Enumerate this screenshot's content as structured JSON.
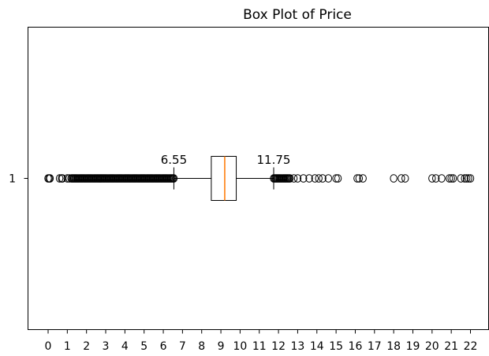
{
  "chart_data": {
    "type": "boxplot",
    "title": "Box Plot of Price",
    "orientation": "horizontal",
    "xlim": [
      -0.5,
      22.5
    ],
    "xticks": [
      0,
      1,
      2,
      3,
      4,
      5,
      6,
      7,
      8,
      9,
      10,
      11,
      12,
      13,
      14,
      15,
      16,
      17,
      18,
      19,
      20,
      21,
      22
    ],
    "yticks": [
      "1"
    ],
    "series": [
      {
        "category": "1",
        "whisker_low": 6.55,
        "q1": 8.5,
        "median": 9.2,
        "q3": 9.8,
        "whisker_high": 11.75,
        "outliers_low_dense_range": [
          1.2,
          6.55
        ],
        "outliers_low_sparse": [
          0.0,
          0.05,
          0.1,
          0.6,
          0.7,
          0.75,
          1.0,
          1.1
        ],
        "outliers_high_dense_range": [
          11.75,
          12.6
        ],
        "outliers_high_sparse": [
          12.8,
          13.0,
          13.3,
          13.6,
          13.9,
          14.1,
          14.3,
          14.6,
          15.0,
          15.1,
          16.1,
          16.2,
          16.4,
          18.0,
          18.4,
          18.6,
          20.0,
          20.2,
          20.5,
          20.9,
          21.0,
          21.1,
          21.5,
          21.7,
          21.8,
          21.9,
          22.0
        ],
        "colors": {
          "box": "#000000",
          "median": "#ff7f0e",
          "outlier": "#000000"
        }
      }
    ],
    "annotations": [
      {
        "text": "6.55",
        "x": 6.55
      },
      {
        "text": "11.75",
        "x": 11.75
      }
    ]
  }
}
